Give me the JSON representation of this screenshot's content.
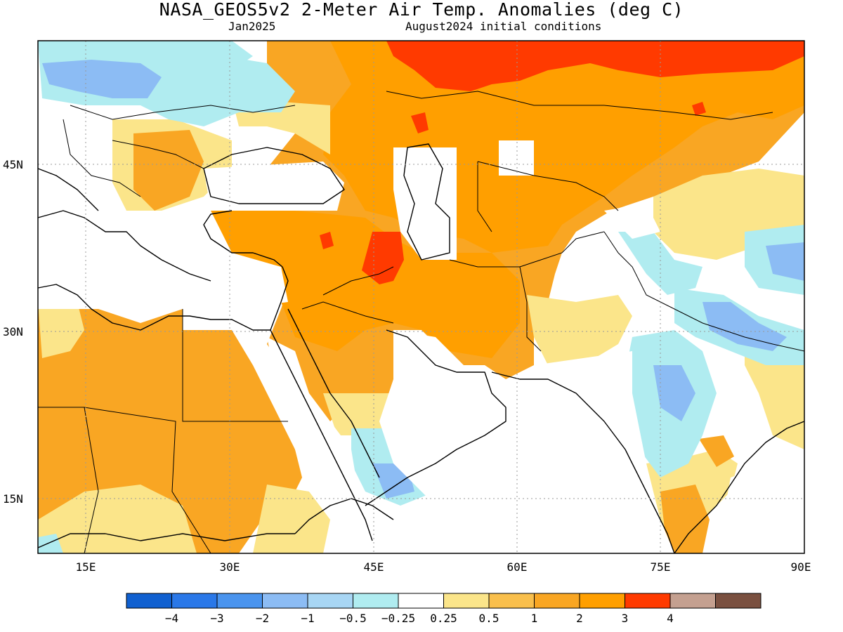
{
  "title": "NASA_GEOS5v2 2-Meter Air Temp. Anomalies (deg C)",
  "subtitle_left": "Jan2025",
  "subtitle_right": "August2024 initial conditions",
  "map": {
    "lat_labels": [
      "45N",
      "30N",
      "15N"
    ],
    "lon_labels": [
      "15E",
      "30E",
      "45E",
      "60E",
      "75E",
      "90E"
    ],
    "gridlines": true,
    "colors": {
      "anom_neg4": "#1060d0",
      "anom_neg3": "#2a78e8",
      "anom_neg2": "#4a94ee",
      "anom_neg1": "#8cbcf4",
      "anom_neg05": "#a8d6f4",
      "anom_neg025": "#b0ecf0",
      "neutral": "#ffffff",
      "anom_pos025": "#fbe58a",
      "anom_pos05": "#f9bf4c",
      "anom_pos1": "#f9a623",
      "anom_pos2": "#ff9f00",
      "anom_pos3": "#ff3a00",
      "anom_pos4": "#c4a090",
      "anom_pos5": "#7a5040"
    }
  },
  "colorbar": {
    "colors": [
      "#1060d0",
      "#2a78e8",
      "#4a94ee",
      "#8cbcf4",
      "#a8d6f4",
      "#b0ecf0",
      "#ffffff",
      "#fbe58a",
      "#f9bf4c",
      "#f9a623",
      "#ff9f00",
      "#ff3a00",
      "#c4a090",
      "#7a5040"
    ],
    "labels": [
      "−4",
      "−3",
      "−2",
      "−1",
      "−0.5",
      "−0.25",
      "0.25",
      "0.5",
      "1",
      "2",
      "3",
      "4"
    ]
  }
}
